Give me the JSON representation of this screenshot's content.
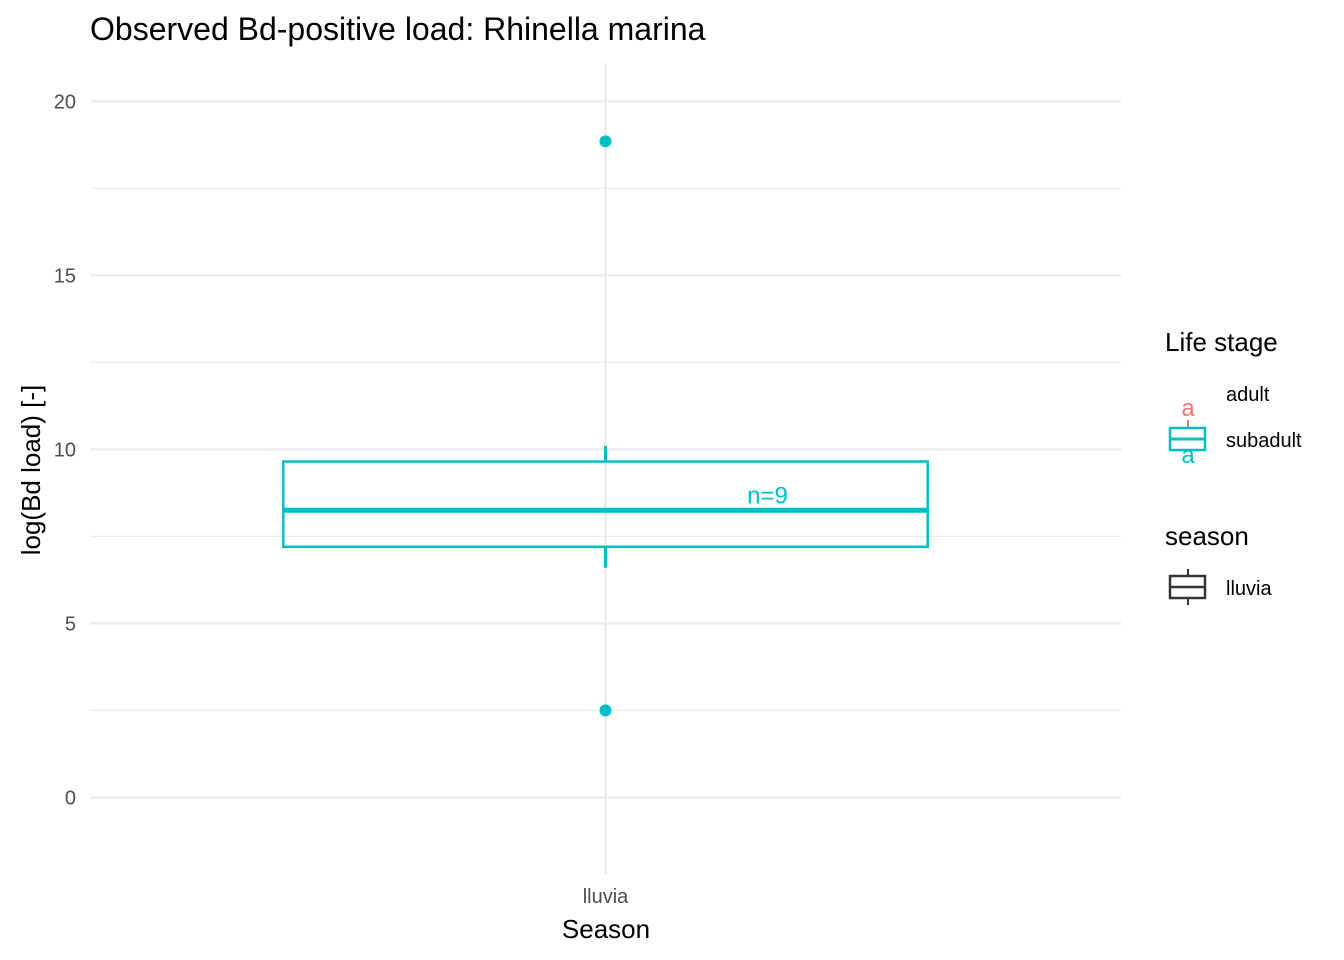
{
  "chart_data": {
    "type": "box",
    "title": "Observed Bd-positive load: Rhinella marina",
    "xlabel": "Season",
    "ylabel": "log(Bd load) [-]",
    "categories": [
      "lluvia"
    ],
    "ylim": [
      -2.2,
      21.1
    ],
    "y_ticks": [
      0,
      5,
      10,
      15,
      20
    ],
    "y_tick_labels": [
      "0",
      "5",
      "10",
      "15",
      "20"
    ],
    "grid": true,
    "series": [
      {
        "name": "subadult",
        "color": "#00BFC4",
        "category": "lluvia",
        "q1": 7.2,
        "median": 8.25,
        "q3": 9.65,
        "whisker_low": 6.6,
        "whisker_high": 10.1,
        "outliers": [
          18.85,
          2.5
        ]
      }
    ],
    "annotations": [
      {
        "text": "n=9",
        "category": "lluvia",
        "y": 8.7,
        "color": "#00BFC4"
      }
    ],
    "legends": [
      {
        "title": "Life stage",
        "position": "right",
        "entries": [
          {
            "label": "adult",
            "color": "#F8766D",
            "glyph": "a"
          },
          {
            "label": "subadult",
            "color": "#00BFC4",
            "glyph": "a"
          }
        ]
      },
      {
        "title": "season",
        "position": "right",
        "entries": [
          {
            "label": "lluvia",
            "color": "#333333"
          }
        ]
      }
    ]
  }
}
